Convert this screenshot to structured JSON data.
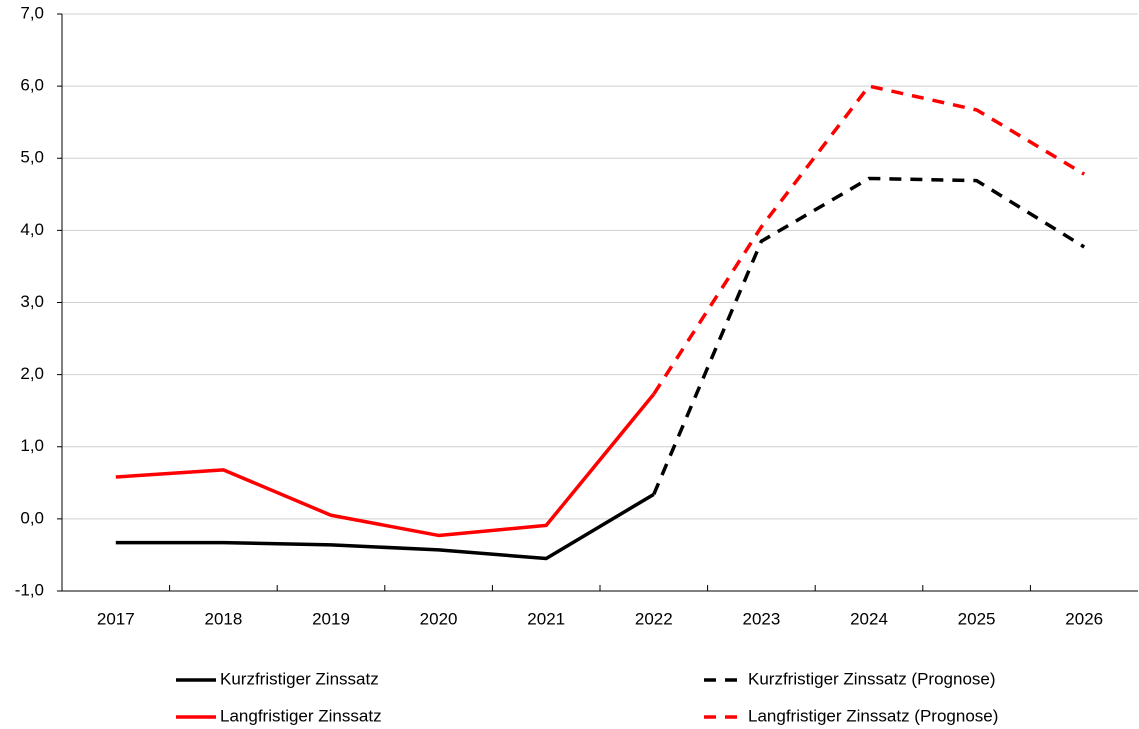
{
  "chart_data": {
    "type": "line",
    "categories": [
      "2017",
      "2018",
      "2019",
      "2020",
      "2021",
      "2022",
      "2023",
      "2024",
      "2025",
      "2026"
    ],
    "series": [
      {
        "name": "Kurzfristiger Zinssatz",
        "color": "#000000",
        "dashed": false,
        "values": [
          -0.33,
          -0.33,
          -0.36,
          -0.43,
          -0.55,
          0.34,
          null,
          null,
          null,
          null
        ]
      },
      {
        "name": "Kurzfristiger Zinssatz (Prognose)",
        "color": "#000000",
        "dashed": true,
        "values": [
          null,
          null,
          null,
          null,
          null,
          0.34,
          3.85,
          4.72,
          4.69,
          3.77
        ]
      },
      {
        "name": "Langfristiger Zinssatz",
        "color": "#ff0000",
        "dashed": false,
        "values": [
          0.58,
          0.68,
          0.05,
          -0.23,
          -0.09,
          1.73,
          null,
          null,
          null,
          null
        ]
      },
      {
        "name": "Langfristiger Zinssatz (Prognose)",
        "color": "#ff0000",
        "dashed": true,
        "values": [
          null,
          null,
          null,
          null,
          null,
          1.73,
          4.05,
          6.0,
          5.67,
          4.78
        ]
      }
    ],
    "ylim": [
      -1,
      7
    ],
    "yticks": [
      {
        "value": -1,
        "label": "-1,0"
      },
      {
        "value": 0,
        "label": "0,0"
      },
      {
        "value": 1,
        "label": "1,0"
      },
      {
        "value": 2,
        "label": "2,0"
      },
      {
        "value": 3,
        "label": "3,0"
      },
      {
        "value": 4,
        "label": "4,0"
      },
      {
        "value": 5,
        "label": "5,0"
      },
      {
        "value": 6,
        "label": "6,0"
      },
      {
        "value": 7,
        "label": "7,0"
      }
    ],
    "grid": true
  }
}
